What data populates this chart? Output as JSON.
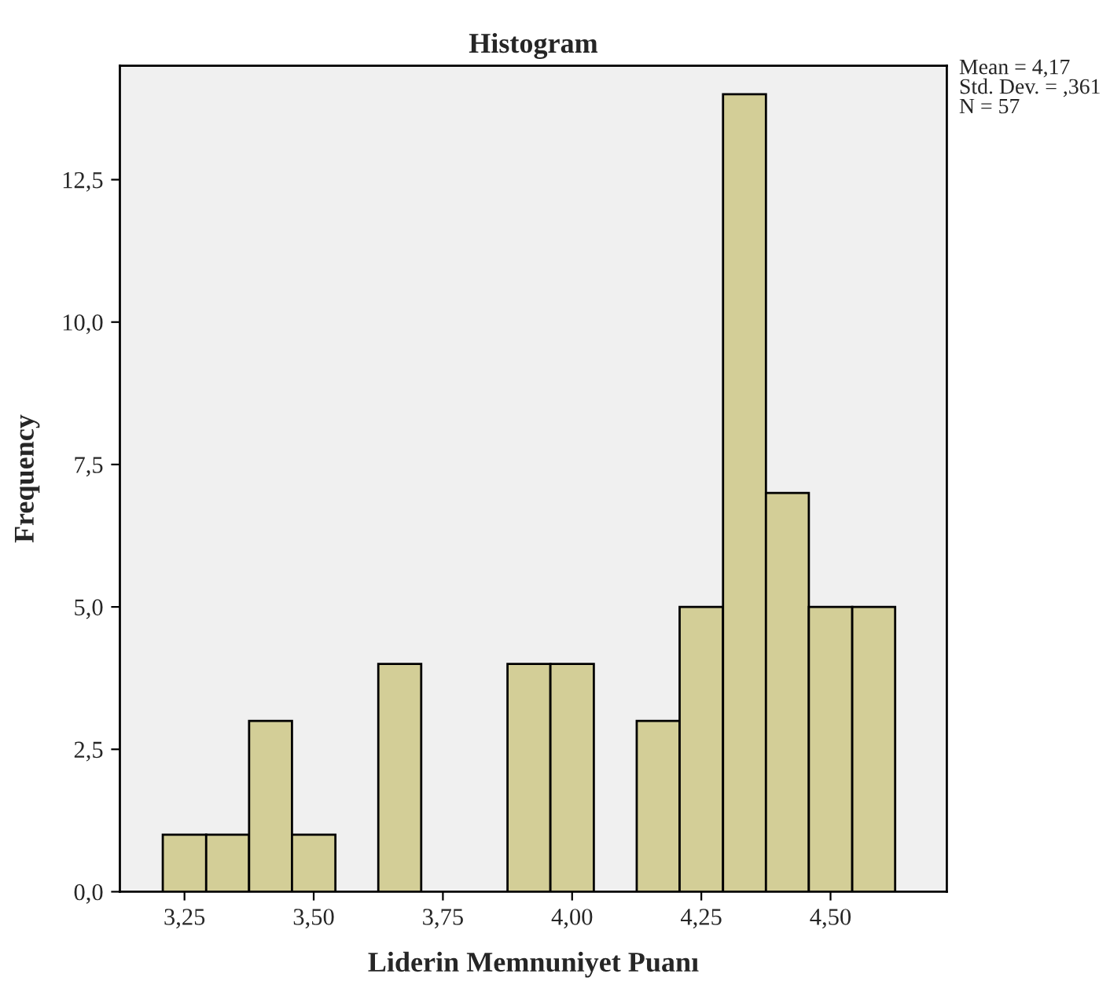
{
  "chart_data": {
    "type": "histogram",
    "title": "Histogram",
    "xlabel": "Liderin Memnuniyet Puanı",
    "ylabel": "Frequency",
    "bins": [
      3.208,
      3.292,
      3.375,
      3.458,
      3.542,
      3.625,
      3.708,
      3.875,
      3.958,
      4.042,
      4.125,
      4.208,
      4.292,
      4.375,
      4.458,
      4.542,
      4.625
    ],
    "values": [
      1,
      1,
      3,
      1,
      0,
      4,
      0,
      4,
      4,
      0,
      3,
      5,
      14,
      7,
      5,
      5
    ],
    "color": "#d3ce97",
    "xlim": [
      3.125,
      4.725
    ],
    "xticks": [
      {
        "value": 3.25,
        "label": "3,25"
      },
      {
        "value": 3.5,
        "label": "3,50"
      },
      {
        "value": 3.75,
        "label": "3,75"
      },
      {
        "value": 4.0,
        "label": "4,00"
      },
      {
        "value": 4.25,
        "label": "4,25"
      },
      {
        "value": 4.5,
        "label": "4,50"
      }
    ],
    "ylim": [
      0,
      14.5
    ],
    "yticks": [
      {
        "value": 0,
        "label": "0,0"
      },
      {
        "value": 2.5,
        "label": "2,5"
      },
      {
        "value": 5,
        "label": "5,0"
      },
      {
        "value": 7.5,
        "label": "7,5"
      },
      {
        "value": 10,
        "label": "10,0"
      },
      {
        "value": 12.5,
        "label": "12,5"
      }
    ],
    "grid": false,
    "annotations": [
      "Mean = 4,17",
      "Std. Dev. = ,361",
      "N = 57"
    ]
  }
}
